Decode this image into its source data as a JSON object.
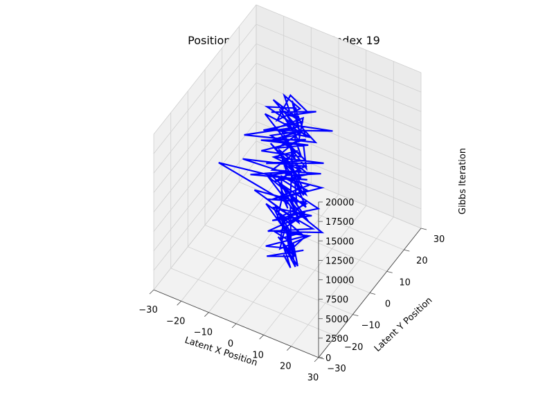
{
  "chart_data": {
    "type": "line3d",
    "title": "Position Trace Plot - Actor Index 19",
    "xlabel": "Latent X Position",
    "ylabel": "Latent Y Position",
    "zlabel": "Gibbs Iteration",
    "xlim": [
      -30,
      30
    ],
    "ylim": [
      -30,
      30
    ],
    "zlim": [
      0,
      20000
    ],
    "xticks": [
      "−30",
      "−20",
      "−10",
      "0",
      "10",
      "20",
      "30"
    ],
    "yticks": [
      "−30",
      "−20",
      "−10",
      "0",
      "10",
      "20",
      "30"
    ],
    "zticks": [
      "0",
      "2500",
      "5000",
      "7500",
      "10000",
      "12500",
      "15000",
      "17500",
      "20000"
    ],
    "grid": true,
    "line_color": "#0000ff",
    "series": [
      {
        "x": [
          -2,
          3,
          -4,
          5,
          -1,
          2,
          -5,
          4,
          0,
          -3,
          6,
          -2,
          1,
          -6,
          3,
          2,
          -4,
          5,
          -1,
          0,
          4,
          -3,
          2,
          -5,
          6,
          1,
          -2,
          3,
          -6,
          4,
          0,
          -3,
          5,
          -1,
          2,
          -4,
          8,
          -7,
          3,
          12,
          -2,
          5,
          -9,
          2,
          4,
          -3,
          7,
          -5,
          1,
          3,
          -8,
          6,
          -2,
          9,
          -4,
          0,
          5,
          -12,
          3,
          10,
          -6,
          2,
          -3,
          7,
          -5,
          4,
          -1,
          8,
          -9,
          3,
          -25,
          5,
          -2,
          6,
          -4,
          1,
          10,
          -7,
          3,
          -2,
          8,
          -5,
          2,
          -11,
          6,
          0,
          -4,
          9,
          -3,
          5,
          -15,
          4,
          -1,
          7,
          -6,
          2,
          11,
          -3,
          0,
          -5,
          5,
          -2,
          8,
          -8,
          3,
          -1,
          6,
          -4,
          12,
          -2,
          0,
          5,
          -7,
          3,
          -9,
          4,
          10,
          -3,
          0,
          6,
          -6,
          2,
          -1,
          7,
          -4,
          3,
          9,
          -12,
          1,
          -2,
          5,
          -10,
          8,
          -4,
          2,
          6,
          -6,
          3,
          -1,
          14,
          -5,
          4,
          -3,
          7,
          0,
          -8,
          5,
          -2,
          10,
          -7,
          3,
          1,
          8,
          -4,
          6,
          -2,
          0,
          4,
          -3,
          2
        ],
        "y": [
          1,
          -3,
          4,
          -2,
          5,
          0,
          -4,
          3,
          -1,
          2,
          -5,
          4,
          0,
          -3,
          6,
          -2,
          1,
          -4,
          3,
          2,
          -5,
          4,
          -1,
          0,
          3,
          -6,
          2,
          -3,
          5,
          1,
          -4,
          3,
          0,
          -2,
          6,
          -5,
          2,
          4,
          -3,
          1,
          5,
          -6,
          2,
          -1,
          4,
          -4,
          3,
          0,
          -5,
          6,
          1,
          -3,
          5,
          -2,
          4,
          -6,
          3,
          0,
          -4,
          2,
          5,
          -3,
          1,
          -5,
          4,
          -1,
          6,
          -2,
          3,
          -4,
          0,
          5,
          -6,
          2,
          3,
          -5,
          4,
          1,
          -3,
          6,
          -2,
          0,
          5,
          -4,
          2,
          -1,
          6,
          -5,
          3,
          0,
          -2,
          4,
          -6,
          1,
          5,
          -3,
          2,
          -4,
          6,
          0,
          -1,
          5,
          -5,
          3,
          -2,
          4,
          1,
          -6,
          2,
          -3,
          5,
          0,
          -4,
          6,
          -1,
          3,
          -5,
          2,
          4,
          -2,
          0,
          6,
          -4,
          1,
          -3,
          5,
          2,
          -6,
          4,
          0,
          -5,
          3,
          1,
          -2,
          6,
          -3,
          5,
          -1,
          0,
          4,
          -6,
          2,
          3,
          -4,
          5,
          1,
          -2,
          6,
          -5,
          3,
          0,
          -1,
          4,
          -3,
          2,
          5,
          -6,
          1,
          3,
          -2
        ],
        "z": [
          0,
          125,
          250,
          375,
          500,
          625,
          750,
          875,
          1000,
          1125,
          1250,
          1375,
          1500,
          1625,
          1750,
          1875,
          2000,
          2125,
          2250,
          2375,
          2500,
          2625,
          2750,
          2875,
          3000,
          3125,
          3250,
          3375,
          3500,
          3625,
          3750,
          3875,
          4000,
          4125,
          4250,
          4375,
          4500,
          4625,
          4750,
          4875,
          5000,
          5125,
          5250,
          5375,
          5500,
          5625,
          5750,
          5875,
          6000,
          6125,
          6250,
          6375,
          6500,
          6625,
          6750,
          6875,
          7000,
          7125,
          7250,
          7375,
          7500,
          7625,
          7750,
          7875,
          8000,
          8125,
          8250,
          8375,
          8500,
          8625,
          8750,
          8875,
          9000,
          9125,
          9250,
          9375,
          9500,
          9625,
          9750,
          9875,
          10000,
          10125,
          10250,
          10375,
          10500,
          10625,
          10750,
          10875,
          11000,
          11125,
          11250,
          11375,
          11500,
          11625,
          11750,
          11875,
          12000,
          12125,
          12250,
          12375,
          12500,
          12625,
          12750,
          12875,
          13000,
          13125,
          13250,
          13375,
          13500,
          13625,
          13750,
          13875,
          14000,
          14125,
          14250,
          14375,
          14500,
          14625,
          14750,
          14875,
          15000,
          15125,
          15250,
          15375,
          15500,
          15625,
          15750,
          15875,
          16000,
          16125,
          16250,
          16375,
          16500,
          16625,
          16750,
          16875,
          17000,
          17125,
          17250,
          17375,
          17500,
          17625,
          17750,
          17875,
          18000,
          18125,
          18250,
          18375,
          18500,
          18625,
          18750,
          18875,
          19000,
          19125,
          19250,
          19375,
          19500,
          19625,
          19750,
          19875
        ]
      }
    ]
  }
}
